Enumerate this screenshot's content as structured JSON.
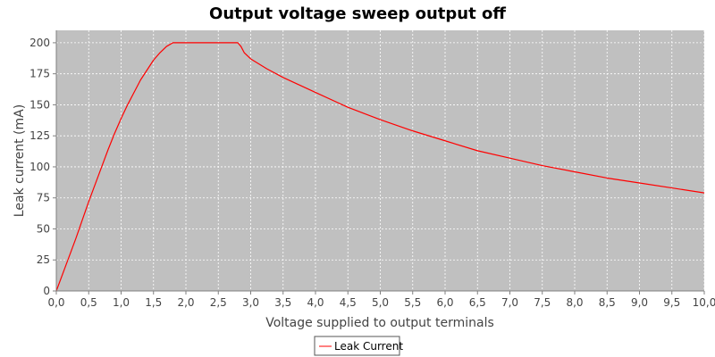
{
  "chart_data": {
    "type": "line",
    "title": "Output voltage sweep output off",
    "xlabel": "Voltage supplied to output terminals",
    "ylabel": "Leak current (mA)",
    "xlim": [
      0,
      10
    ],
    "ylim": [
      0,
      210
    ],
    "x_ticks": [
      "0,0",
      "0,5",
      "1,0",
      "1,5",
      "2,0",
      "2,5",
      "3,0",
      "3,5",
      "4,0",
      "4,5",
      "5,0",
      "5,5",
      "6,0",
      "6,5",
      "7,0",
      "7,5",
      "8,0",
      "8,5",
      "9,0",
      "9,5",
      "10,0"
    ],
    "y_ticks": [
      "0",
      "25",
      "50",
      "75",
      "100",
      "125",
      "150",
      "175",
      "200"
    ],
    "grid": true,
    "legend_position": "bottom",
    "plot_background": "#c0c0c0",
    "series": [
      {
        "name": "Leak Current",
        "color": "#ff0000",
        "x": [
          0.0,
          0.1,
          0.2,
          0.3,
          0.4,
          0.5,
          0.6,
          0.7,
          0.8,
          0.9,
          1.0,
          1.1,
          1.2,
          1.3,
          1.4,
          1.5,
          1.6,
          1.7,
          1.8,
          2.0,
          2.2,
          2.4,
          2.6,
          2.8,
          2.85,
          2.9,
          3.0,
          3.25,
          3.5,
          3.75,
          4.0,
          4.5,
          5.0,
          5.5,
          6.0,
          6.5,
          7.0,
          7.5,
          8.0,
          8.5,
          9.0,
          9.5,
          10.0
        ],
        "y": [
          0,
          14,
          28,
          42,
          57,
          72,
          86,
          100,
          114,
          127,
          139,
          150,
          160,
          170,
          178,
          186,
          192,
          197,
          200,
          200,
          200,
          200,
          200,
          200,
          197,
          192,
          187,
          179,
          172,
          166,
          160,
          148,
          138,
          129,
          121,
          113,
          107,
          101,
          96,
          91,
          87,
          83,
          79
        ]
      }
    ]
  }
}
